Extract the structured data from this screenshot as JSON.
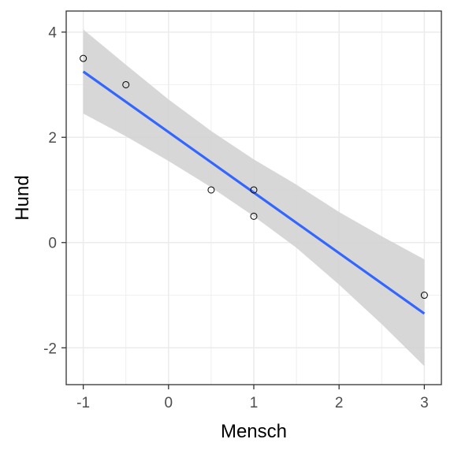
{
  "chart_data": {
    "type": "scatter",
    "xlabel": "Mensch",
    "ylabel": "Hund",
    "xlim": [
      -1.2,
      3.2
    ],
    "ylim": [
      -2.7,
      4.4
    ],
    "x_ticks": [
      -1,
      0,
      1,
      2,
      3
    ],
    "x_tick_labels": [
      "-1",
      "0",
      "1",
      "2",
      "3"
    ],
    "y_ticks": [
      -2,
      0,
      2,
      4
    ],
    "y_tick_labels": [
      "-2",
      "0",
      "2",
      "4"
    ],
    "grid": true,
    "points": [
      {
        "x": -1,
        "y": 3.5
      },
      {
        "x": -0.5,
        "y": 3.0
      },
      {
        "x": 0.5,
        "y": 1.0
      },
      {
        "x": 1,
        "y": 1.0
      },
      {
        "x": 1,
        "y": 0.5
      },
      {
        "x": 3,
        "y": -1.0
      }
    ],
    "fit_line": {
      "x": [
        -1,
        3
      ],
      "y": [
        3.25,
        -1.35
      ]
    },
    "confidence_band": {
      "x": [
        -1.0,
        -0.5,
        0.0,
        0.5,
        1.0,
        1.5,
        2.0,
        2.5,
        3.0
      ],
      "lower": [
        2.45,
        2.02,
        1.55,
        1.05,
        0.5,
        -0.1,
        -0.8,
        -1.55,
        -2.35
      ],
      "upper": [
        4.05,
        3.38,
        2.72,
        2.12,
        1.58,
        1.1,
        0.58,
        0.12,
        -0.32
      ]
    },
    "colors": {
      "fit_line": "#3366ff",
      "band": "#d3d3d3",
      "point_stroke": "#000000",
      "grid": "#ebebeb",
      "panel_border": "#333333"
    }
  }
}
